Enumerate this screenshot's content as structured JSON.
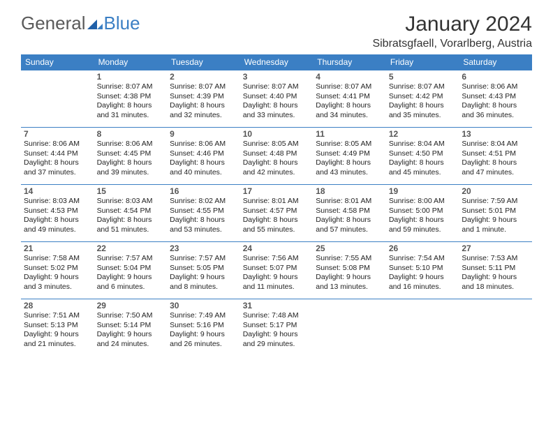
{
  "logo": {
    "text1": "General",
    "text2": "Blue"
  },
  "title": "January 2024",
  "location": "Sibratsgfaell, Vorarlberg, Austria",
  "colors": {
    "header_bg": "#3b7fc4",
    "header_text": "#ffffff",
    "border": "#3b7fc4",
    "logo_gray": "#5a5a5a",
    "logo_blue": "#3b7fc4"
  },
  "daynames": [
    "Sunday",
    "Monday",
    "Tuesday",
    "Wednesday",
    "Thursday",
    "Friday",
    "Saturday"
  ],
  "weeks": [
    [
      {
        "n": "",
        "sr": "",
        "ss": "",
        "dl": ""
      },
      {
        "n": "1",
        "sr": "Sunrise: 8:07 AM",
        "ss": "Sunset: 4:38 PM",
        "dl": "Daylight: 8 hours and 31 minutes."
      },
      {
        "n": "2",
        "sr": "Sunrise: 8:07 AM",
        "ss": "Sunset: 4:39 PM",
        "dl": "Daylight: 8 hours and 32 minutes."
      },
      {
        "n": "3",
        "sr": "Sunrise: 8:07 AM",
        "ss": "Sunset: 4:40 PM",
        "dl": "Daylight: 8 hours and 33 minutes."
      },
      {
        "n": "4",
        "sr": "Sunrise: 8:07 AM",
        "ss": "Sunset: 4:41 PM",
        "dl": "Daylight: 8 hours and 34 minutes."
      },
      {
        "n": "5",
        "sr": "Sunrise: 8:07 AM",
        "ss": "Sunset: 4:42 PM",
        "dl": "Daylight: 8 hours and 35 minutes."
      },
      {
        "n": "6",
        "sr": "Sunrise: 8:06 AM",
        "ss": "Sunset: 4:43 PM",
        "dl": "Daylight: 8 hours and 36 minutes."
      }
    ],
    [
      {
        "n": "7",
        "sr": "Sunrise: 8:06 AM",
        "ss": "Sunset: 4:44 PM",
        "dl": "Daylight: 8 hours and 37 minutes."
      },
      {
        "n": "8",
        "sr": "Sunrise: 8:06 AM",
        "ss": "Sunset: 4:45 PM",
        "dl": "Daylight: 8 hours and 39 minutes."
      },
      {
        "n": "9",
        "sr": "Sunrise: 8:06 AM",
        "ss": "Sunset: 4:46 PM",
        "dl": "Daylight: 8 hours and 40 minutes."
      },
      {
        "n": "10",
        "sr": "Sunrise: 8:05 AM",
        "ss": "Sunset: 4:48 PM",
        "dl": "Daylight: 8 hours and 42 minutes."
      },
      {
        "n": "11",
        "sr": "Sunrise: 8:05 AM",
        "ss": "Sunset: 4:49 PM",
        "dl": "Daylight: 8 hours and 43 minutes."
      },
      {
        "n": "12",
        "sr": "Sunrise: 8:04 AM",
        "ss": "Sunset: 4:50 PM",
        "dl": "Daylight: 8 hours and 45 minutes."
      },
      {
        "n": "13",
        "sr": "Sunrise: 8:04 AM",
        "ss": "Sunset: 4:51 PM",
        "dl": "Daylight: 8 hours and 47 minutes."
      }
    ],
    [
      {
        "n": "14",
        "sr": "Sunrise: 8:03 AM",
        "ss": "Sunset: 4:53 PM",
        "dl": "Daylight: 8 hours and 49 minutes."
      },
      {
        "n": "15",
        "sr": "Sunrise: 8:03 AM",
        "ss": "Sunset: 4:54 PM",
        "dl": "Daylight: 8 hours and 51 minutes."
      },
      {
        "n": "16",
        "sr": "Sunrise: 8:02 AM",
        "ss": "Sunset: 4:55 PM",
        "dl": "Daylight: 8 hours and 53 minutes."
      },
      {
        "n": "17",
        "sr": "Sunrise: 8:01 AM",
        "ss": "Sunset: 4:57 PM",
        "dl": "Daylight: 8 hours and 55 minutes."
      },
      {
        "n": "18",
        "sr": "Sunrise: 8:01 AM",
        "ss": "Sunset: 4:58 PM",
        "dl": "Daylight: 8 hours and 57 minutes."
      },
      {
        "n": "19",
        "sr": "Sunrise: 8:00 AM",
        "ss": "Sunset: 5:00 PM",
        "dl": "Daylight: 8 hours and 59 minutes."
      },
      {
        "n": "20",
        "sr": "Sunrise: 7:59 AM",
        "ss": "Sunset: 5:01 PM",
        "dl": "Daylight: 9 hours and 1 minute."
      }
    ],
    [
      {
        "n": "21",
        "sr": "Sunrise: 7:58 AM",
        "ss": "Sunset: 5:02 PM",
        "dl": "Daylight: 9 hours and 3 minutes."
      },
      {
        "n": "22",
        "sr": "Sunrise: 7:57 AM",
        "ss": "Sunset: 5:04 PM",
        "dl": "Daylight: 9 hours and 6 minutes."
      },
      {
        "n": "23",
        "sr": "Sunrise: 7:57 AM",
        "ss": "Sunset: 5:05 PM",
        "dl": "Daylight: 9 hours and 8 minutes."
      },
      {
        "n": "24",
        "sr": "Sunrise: 7:56 AM",
        "ss": "Sunset: 5:07 PM",
        "dl": "Daylight: 9 hours and 11 minutes."
      },
      {
        "n": "25",
        "sr": "Sunrise: 7:55 AM",
        "ss": "Sunset: 5:08 PM",
        "dl": "Daylight: 9 hours and 13 minutes."
      },
      {
        "n": "26",
        "sr": "Sunrise: 7:54 AM",
        "ss": "Sunset: 5:10 PM",
        "dl": "Daylight: 9 hours and 16 minutes."
      },
      {
        "n": "27",
        "sr": "Sunrise: 7:53 AM",
        "ss": "Sunset: 5:11 PM",
        "dl": "Daylight: 9 hours and 18 minutes."
      }
    ],
    [
      {
        "n": "28",
        "sr": "Sunrise: 7:51 AM",
        "ss": "Sunset: 5:13 PM",
        "dl": "Daylight: 9 hours and 21 minutes."
      },
      {
        "n": "29",
        "sr": "Sunrise: 7:50 AM",
        "ss": "Sunset: 5:14 PM",
        "dl": "Daylight: 9 hours and 24 minutes."
      },
      {
        "n": "30",
        "sr": "Sunrise: 7:49 AM",
        "ss": "Sunset: 5:16 PM",
        "dl": "Daylight: 9 hours and 26 minutes."
      },
      {
        "n": "31",
        "sr": "Sunrise: 7:48 AM",
        "ss": "Sunset: 5:17 PM",
        "dl": "Daylight: 9 hours and 29 minutes."
      },
      {
        "n": "",
        "sr": "",
        "ss": "",
        "dl": ""
      },
      {
        "n": "",
        "sr": "",
        "ss": "",
        "dl": ""
      },
      {
        "n": "",
        "sr": "",
        "ss": "",
        "dl": ""
      }
    ]
  ]
}
